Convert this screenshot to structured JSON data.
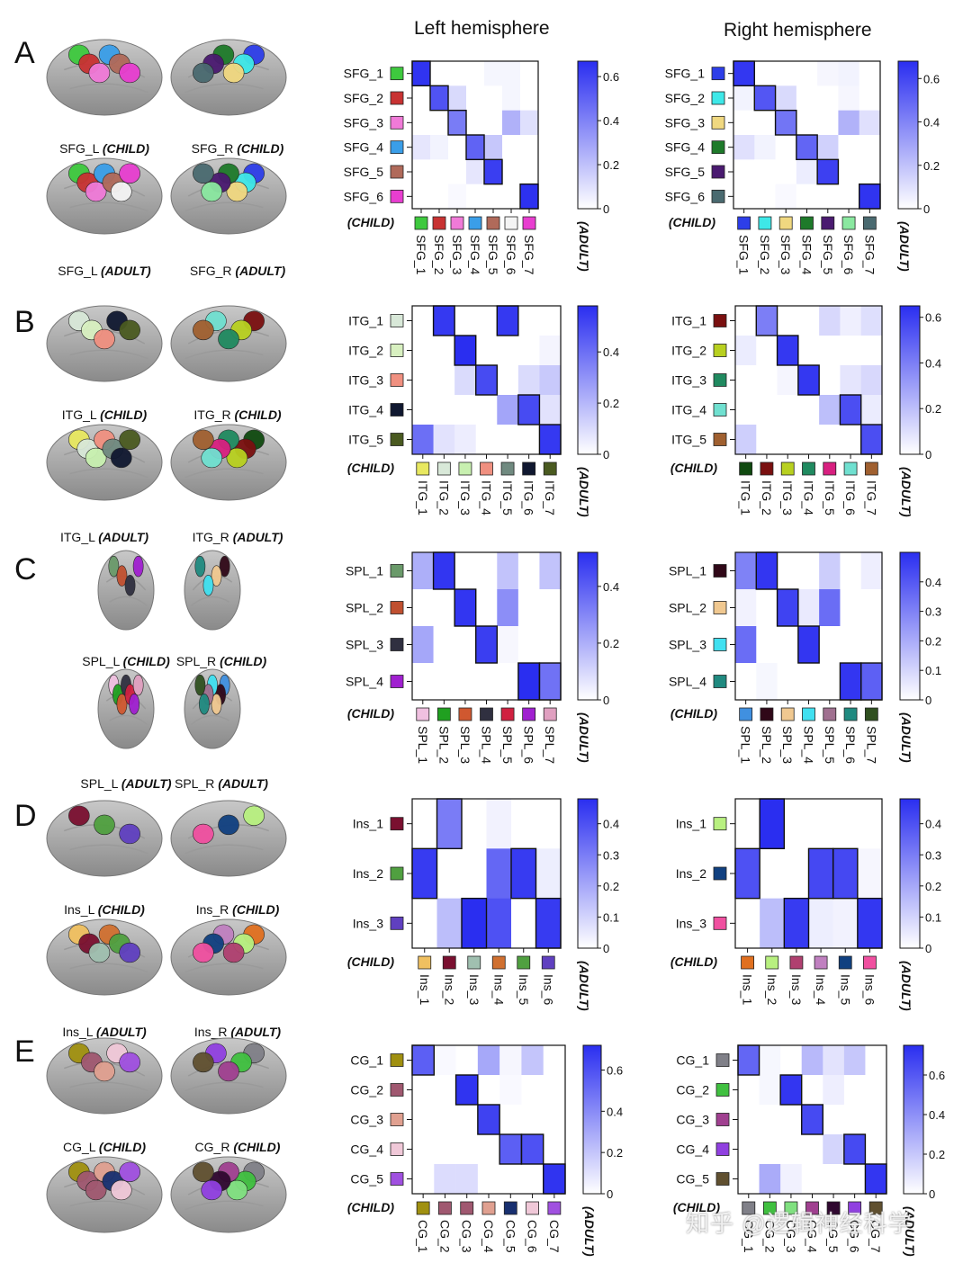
{
  "headers": {
    "left": "Left hemisphere",
    "right": "Right hemisphere"
  },
  "watermark": "知乎 @逻辑神经科学",
  "child_label": "(CHILD)",
  "adult_label": "(ADULT)",
  "panels": [
    {
      "letter": "A",
      "brain_labels": [
        "SFG_L (CHILD)",
        "SFG_R (CHILD)",
        "SFG_L (ADULT)",
        "SFG_R (ADULT)"
      ],
      "left": {
        "rows": [
          "SFG_1",
          "SFG_2",
          "SFG_3",
          "SFG_4",
          "SFG_5",
          "SFG_6"
        ],
        "row_colors": [
          "#3ec93e",
          "#c83232",
          "#f07ad8",
          "#3a9ee8",
          "#b06a5a",
          "#e83ed0"
        ],
        "cols": [
          "SFG_1",
          "SFG_2",
          "SFG_3",
          "SFG_4",
          "SFG_5",
          "SFG_6",
          "SFG_7"
        ],
        "col_colors": [
          "#3ec93e",
          "#c83232",
          "#f07ad8",
          "#3a9ee8",
          "#b06a5a",
          "#f4f4f4",
          "#e83ed0"
        ],
        "colorbar": {
          "max": 0.67,
          "ticks": [
            0,
            0.2,
            0.4,
            0.6
          ],
          "tick_labels": [
            "0",
            "0.2",
            "0.4",
            "0.6"
          ]
        },
        "matrix": [
          [
            0.65,
            0,
            0,
            0,
            0.03,
            0.03,
            0
          ],
          [
            0,
            0.55,
            0.12,
            0,
            0,
            0.03,
            0
          ],
          [
            0,
            0,
            0.42,
            0,
            0,
            0.25,
            0.1
          ],
          [
            0.08,
            0.04,
            0,
            0.5,
            0.18,
            0,
            0
          ],
          [
            0,
            0,
            0,
            0.08,
            0.62,
            0,
            0
          ],
          [
            0,
            0,
            0.02,
            0,
            0,
            0,
            0.66
          ]
        ],
        "boxes": [
          [
            0,
            0
          ],
          [
            1,
            1
          ],
          [
            2,
            2
          ],
          [
            3,
            3
          ],
          [
            4,
            4
          ],
          [
            5,
            6
          ]
        ]
      },
      "right": {
        "rows": [
          "SFG_1",
          "SFG_2",
          "SFG_3",
          "SFG_4",
          "SFG_5",
          "SFG_6"
        ],
        "row_colors": [
          "#2d3ee8",
          "#3ee8e8",
          "#f0d880",
          "#1e7a2a",
          "#4a1a70",
          "#4a6a70"
        ],
        "cols": [
          "SFG_1",
          "SFG_2",
          "SFG_3",
          "SFG_4",
          "SFG_5",
          "SFG_6",
          "SFG_7"
        ],
        "col_colors": [
          "#2d3ee8",
          "#3ee8e8",
          "#f0d880",
          "#1e7a2a",
          "#4a1a70",
          "#8ae8a0",
          "#4a6a70"
        ],
        "colorbar": {
          "max": 0.68,
          "ticks": [
            0,
            0.2,
            0.4,
            0.6
          ],
          "tick_labels": [
            "0",
            "0.2",
            "0.4",
            "0.6"
          ]
        },
        "matrix": [
          [
            0.65,
            0,
            0,
            0,
            0.03,
            0.04,
            0
          ],
          [
            0.04,
            0.55,
            0.12,
            0,
            0,
            0.03,
            0
          ],
          [
            0,
            0,
            0.45,
            0,
            0,
            0.25,
            0.1
          ],
          [
            0.1,
            0.04,
            0,
            0.5,
            0.15,
            0,
            0
          ],
          [
            0,
            0,
            0,
            0.06,
            0.62,
            0,
            0
          ],
          [
            0,
            0,
            0.02,
            0,
            0,
            0,
            0.66
          ]
        ],
        "boxes": [
          [
            0,
            0
          ],
          [
            1,
            1
          ],
          [
            2,
            2
          ],
          [
            3,
            3
          ],
          [
            4,
            4
          ],
          [
            5,
            6
          ]
        ]
      }
    },
    {
      "letter": "B",
      "brain_labels": [
        "ITG_L (CHILD)",
        "ITG_R (CHILD)",
        "ITG_L (ADULT)",
        "ITG_R (ADULT)"
      ],
      "left": {
        "rows": [
          "ITG_1",
          "ITG_2",
          "ITG_3",
          "ITG_4",
          "ITG_5"
        ],
        "row_colors": [
          "#d8e8d8",
          "#d8f0c0",
          "#f09080",
          "#101830",
          "#4a5a20"
        ],
        "cols": [
          "ITG_1",
          "ITG_2",
          "ITG_3",
          "ITG_4",
          "ITG_5",
          "ITG_6",
          "ITG_7"
        ],
        "col_colors": [
          "#e8e860",
          "#d8e8d8",
          "#c8f0b0",
          "#f09080",
          "#708a80",
          "#101830",
          "#4a5a20"
        ],
        "colorbar": {
          "max": 0.58,
          "ticks": [
            0,
            0.2,
            0.4
          ],
          "tick_labels": [
            "0",
            "0.2",
            "0.4"
          ]
        },
        "matrix": [
          [
            0,
            0.55,
            0,
            0,
            0.55,
            0,
            0
          ],
          [
            0,
            0,
            0.58,
            0,
            0,
            0,
            0.03
          ],
          [
            0,
            0,
            0.1,
            0.5,
            0,
            0.1,
            0.15
          ],
          [
            0,
            0,
            0,
            0,
            0.25,
            0.5,
            0.08
          ],
          [
            0.4,
            0.08,
            0.05,
            0,
            0,
            0,
            0.55
          ]
        ],
        "boxes": [
          [
            0,
            1
          ],
          [
            0,
            4
          ],
          [
            1,
            2
          ],
          [
            2,
            3
          ],
          [
            3,
            5
          ],
          [
            4,
            6
          ]
        ]
      },
      "right": {
        "rows": [
          "ITG_1",
          "ITG_2",
          "ITG_3",
          "ITG_4",
          "ITG_5"
        ],
        "row_colors": [
          "#7a1010",
          "#b8d020",
          "#208a60",
          "#70e0d0",
          "#a06030"
        ],
        "cols": [
          "ITG_1",
          "ITG_2",
          "ITG_3",
          "ITG_4",
          "ITG_5",
          "ITG_6",
          "ITG_7"
        ],
        "col_colors": [
          "#104a10",
          "#7a1010",
          "#b8d020",
          "#208a60",
          "#d82080",
          "#70e0d0",
          "#a06030"
        ],
        "colorbar": {
          "max": 0.65,
          "ticks": [
            0,
            0.2,
            0.4,
            0.6
          ],
          "tick_labels": [
            "0",
            "0.2",
            "0.4",
            "0.6"
          ]
        },
        "matrix": [
          [
            0,
            0.4,
            0,
            0,
            0.12,
            0.05,
            0.1
          ],
          [
            0.06,
            0,
            0.62,
            0,
            0,
            0,
            0
          ],
          [
            0,
            0,
            0.03,
            0.62,
            0,
            0.08,
            0.12
          ],
          [
            0,
            0,
            0,
            0,
            0.2,
            0.55,
            0.06
          ],
          [
            0.15,
            0,
            0,
            0,
            0,
            0,
            0.55
          ]
        ],
        "boxes": [
          [
            0,
            1
          ],
          [
            1,
            2
          ],
          [
            2,
            3
          ],
          [
            3,
            5
          ],
          [
            4,
            6
          ]
        ]
      }
    },
    {
      "letter": "C",
      "brain_labels": [
        "SPL_L (CHILD)",
        "SPL_R (CHILD)",
        "SPL_L (ADULT)",
        "SPL_R (ADULT)"
      ],
      "left": {
        "rows": [
          "SPL_1",
          "SPL_2",
          "SPL_3",
          "SPL_4"
        ],
        "row_colors": [
          "#6a9a6a",
          "#c05030",
          "#303040",
          "#a020d0"
        ],
        "cols": [
          "SPL_1",
          "SPL_2",
          "SPL_3",
          "SPL_4",
          "SPL_5",
          "SPL_6",
          "SPL_7"
        ],
        "col_colors": [
          "#f0c0e0",
          "#20a020",
          "#d05830",
          "#303040",
          "#d02040",
          "#a020d0",
          "#e0a0c0"
        ],
        "colorbar": {
          "max": 0.52,
          "ticks": [
            0,
            0.2,
            0.4
          ],
          "tick_labels": [
            "0",
            "0.2",
            "0.4"
          ]
        },
        "matrix": [
          [
            0.2,
            0.5,
            0,
            0,
            0.15,
            0,
            0.15
          ],
          [
            0,
            0,
            0.5,
            0,
            0.28,
            0,
            0
          ],
          [
            0.22,
            0,
            0,
            0.48,
            0.02,
            0,
            0
          ],
          [
            0,
            0,
            0,
            0,
            0,
            0.52,
            0.35
          ]
        ],
        "boxes": [
          [
            0,
            1
          ],
          [
            1,
            2
          ],
          [
            2,
            3
          ],
          [
            3,
            5
          ],
          [
            3,
            6
          ]
        ]
      },
      "right": {
        "rows": [
          "SPL_1",
          "SPL_2",
          "SPL_3",
          "SPL_4"
        ],
        "row_colors": [
          "#300818",
          "#f0c890",
          "#40e0f0",
          "#208a80"
        ],
        "cols": [
          "SPL_1",
          "SPL_2",
          "SPL_3",
          "SPL_4",
          "SPL_5",
          "SPL_6",
          "SPL_7"
        ],
        "col_colors": [
          "#4090e0",
          "#300818",
          "#f0c890",
          "#40e0f0",
          "#a07090",
          "#208a80",
          "#305020"
        ],
        "colorbar": {
          "max": 0.5,
          "ticks": [
            0,
            0.1,
            0.2,
            0.3,
            0.4
          ],
          "tick_labels": [
            "0",
            "0.1",
            "0.2",
            "0.3",
            "0.4"
          ]
        },
        "matrix": [
          [
            0.3,
            0.48,
            0,
            0,
            0.12,
            0,
            0.04
          ],
          [
            0.03,
            0,
            0.45,
            0.05,
            0.35,
            0,
            0
          ],
          [
            0.35,
            0,
            0,
            0.48,
            0,
            0,
            0
          ],
          [
            0,
            0.02,
            0,
            0,
            0,
            0.48,
            0.38
          ]
        ],
        "boxes": [
          [
            0,
            1
          ],
          [
            1,
            2
          ],
          [
            2,
            3
          ],
          [
            3,
            5
          ],
          [
            3,
            6
          ]
        ]
      }
    },
    {
      "letter": "D",
      "brain_labels": [
        "Ins_L (CHILD)",
        "Ins_R (CHILD)",
        "Ins_L (ADULT)",
        "Ins_R (ADULT)"
      ],
      "left": {
        "rows": [
          "Ins_1",
          "Ins_2",
          "Ins_3"
        ],
        "row_colors": [
          "#7a1030",
          "#50a040",
          "#6040c0"
        ],
        "cols": [
          "Ins_1",
          "Ins_2",
          "Ins_3",
          "Ins_4",
          "Ins_5",
          "Ins_6"
        ],
        "col_colors": [
          "#f0c060",
          "#7a1030",
          "#a0c0b0",
          "#d07030",
          "#50a040",
          "#6040c0"
        ],
        "colorbar": {
          "max": 0.48,
          "ticks": [
            0,
            0.1,
            0.2,
            0.3,
            0.4
          ],
          "tick_labels": [
            "0",
            "0.1",
            "0.2",
            "0.3",
            "0.4"
          ]
        },
        "matrix": [
          [
            0,
            0.3,
            0,
            0.03,
            0,
            0
          ],
          [
            0.45,
            0,
            0,
            0.35,
            0.45,
            0.04
          ],
          [
            0,
            0.15,
            0.48,
            0.4,
            0,
            0.45
          ]
        ],
        "boxes": [
          [
            0,
            1
          ],
          [
            1,
            0
          ],
          [
            1,
            4
          ],
          [
            2,
            2
          ],
          [
            2,
            5
          ]
        ]
      },
      "right": {
        "rows": [
          "Ins_1",
          "Ins_2",
          "Ins_3"
        ],
        "row_colors": [
          "#b8f080",
          "#104080",
          "#f050a0"
        ],
        "cols": [
          "Ins_1",
          "Ins_2",
          "Ins_3",
          "Ins_4",
          "Ins_5",
          "Ins_6"
        ],
        "col_colors": [
          "#e07020",
          "#b8f080",
          "#b04070",
          "#c080c0",
          "#104080",
          "#f050a0"
        ],
        "colorbar": {
          "max": 0.48,
          "ticks": [
            0,
            0.1,
            0.2,
            0.3,
            0.4
          ],
          "tick_labels": [
            "0",
            "0.1",
            "0.2",
            "0.3",
            "0.4"
          ]
        },
        "matrix": [
          [
            0,
            0.48,
            0,
            0,
            0,
            0
          ],
          [
            0.4,
            0,
            0,
            0.42,
            0.42,
            0.02
          ],
          [
            0,
            0.15,
            0.45,
            0.04,
            0.03,
            0.46
          ]
        ],
        "boxes": [
          [
            0,
            1
          ],
          [
            1,
            0
          ],
          [
            1,
            3
          ],
          [
            1,
            4
          ],
          [
            2,
            2
          ],
          [
            2,
            5
          ]
        ]
      }
    },
    {
      "letter": "E",
      "brain_labels": [
        "CG_L (CHILD)",
        "CG_R (CHILD)",
        "CG_L (ADULT)",
        "CG_R (ADULT)"
      ],
      "left": {
        "rows": [
          "CG_1",
          "CG_2",
          "CG_3",
          "CG_4",
          "CG_5"
        ],
        "row_colors": [
          "#a09010",
          "#a05870",
          "#e0a090",
          "#f0c8d8",
          "#a050e0"
        ],
        "cols": [
          "CG_1",
          "CG_2",
          "CG_3",
          "CG_4",
          "CG_5",
          "CG_6",
          "CG_7"
        ],
        "col_colors": [
          "#a09010",
          "#a05870",
          "#a05870",
          "#e0a090",
          "#183070",
          "#f0c8d8",
          "#a050e0"
        ],
        "colorbar": {
          "max": 0.72,
          "ticks": [
            0,
            0.2,
            0.4,
            0.6
          ],
          "tick_labels": [
            "0",
            "0.2",
            "0.4",
            "0.6"
          ]
        },
        "matrix": [
          [
            0.55,
            0.02,
            0,
            0.3,
            0.03,
            0.2,
            0
          ],
          [
            0,
            0,
            0.7,
            0,
            0.02,
            0,
            0
          ],
          [
            0,
            0,
            0,
            0.65,
            0,
            0,
            0
          ],
          [
            0,
            0,
            0,
            0,
            0.55,
            0.6,
            0
          ],
          [
            0,
            0.12,
            0.12,
            0,
            0,
            0,
            0.7
          ]
        ],
        "boxes": [
          [
            0,
            0
          ],
          [
            1,
            2
          ],
          [
            2,
            3
          ],
          [
            3,
            4
          ],
          [
            3,
            5
          ],
          [
            4,
            6
          ]
        ]
      },
      "right": {
        "rows": [
          "CG_1",
          "CG_2",
          "CG_3",
          "CG_4",
          "CG_5"
        ],
        "row_colors": [
          "#808088",
          "#40c040",
          "#a04090",
          "#9040e0",
          "#605030"
        ],
        "cols": [
          "CG_1",
          "CG_2",
          "CG_3",
          "CG_4",
          "CG_5",
          "CG_6",
          "CG_7"
        ],
        "col_colors": [
          "#808088",
          "#40c040",
          "#80e080",
          "#a04090",
          "#300830",
          "#9040e0",
          "#605030"
        ],
        "colorbar": {
          "max": 0.75,
          "ticks": [
            0,
            0.2,
            0.4,
            0.6
          ],
          "tick_labels": [
            "0",
            "0.2",
            "0.4",
            "0.6"
          ]
        },
        "matrix": [
          [
            0.55,
            0.03,
            0,
            0.25,
            0.1,
            0.2,
            0
          ],
          [
            0,
            0.03,
            0.72,
            0,
            0.06,
            0,
            0
          ],
          [
            0,
            0,
            0,
            0.65,
            0,
            0,
            0
          ],
          [
            0,
            0,
            0,
            0,
            0.15,
            0.65,
            0
          ],
          [
            0,
            0.3,
            0.05,
            0,
            0,
            0,
            0.72
          ]
        ],
        "boxes": [
          [
            0,
            0
          ],
          [
            1,
            2
          ],
          [
            2,
            3
          ],
          [
            3,
            5
          ],
          [
            4,
            6
          ]
        ]
      }
    }
  ]
}
